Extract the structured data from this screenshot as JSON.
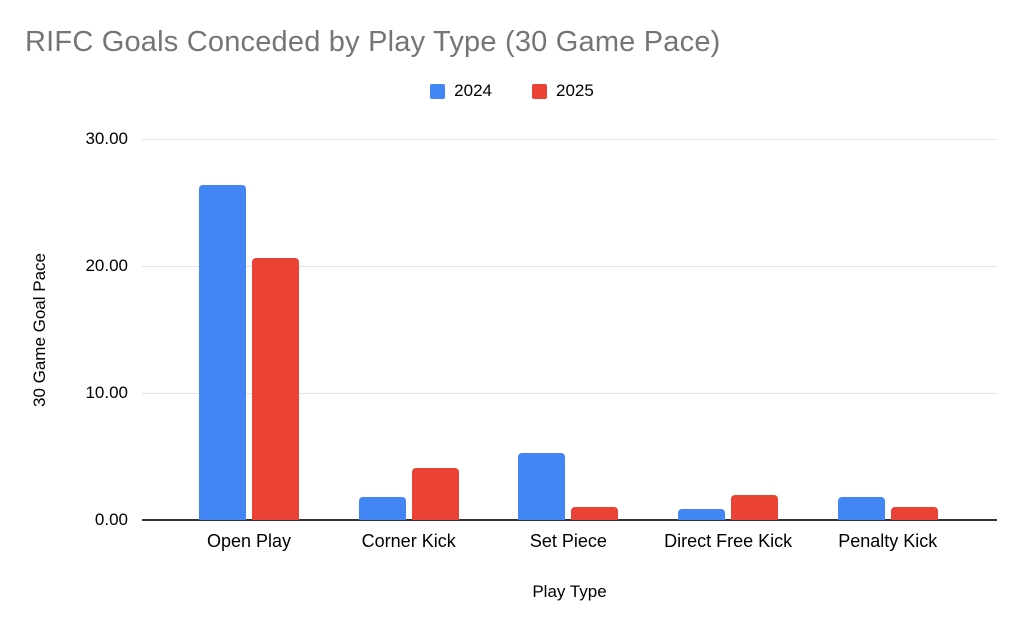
{
  "title": "RIFC Goals Conceded by Play Type (30 Game Pace)",
  "chart_data": {
    "type": "bar",
    "title": "RIFC Goals Conceded by Play Type (30 Game Pace)",
    "categories": [
      "Open Play",
      "Corner Kick",
      "Set Piece",
      "Direct Free Kick",
      "Penalty Kick"
    ],
    "series": [
      {
        "name": "2024",
        "color": "#4285F4",
        "values": [
          26.4,
          1.8,
          5.3,
          0.9,
          1.8
        ]
      },
      {
        "name": "2025",
        "color": "#EA4335",
        "values": [
          20.6,
          4.1,
          1.0,
          2.0,
          1.0
        ]
      }
    ],
    "xlabel": "Play Type",
    "ylabel": "30 Game Goal Pace",
    "ylim": [
      0,
      30
    ],
    "yticks": [
      0,
      10,
      20,
      30
    ],
    "ytick_labels": [
      "0.00",
      "10.00",
      "20.00",
      "30.00"
    ],
    "grid": true,
    "legend_position": "top"
  },
  "colors": {
    "title_text": "#757575",
    "axis_text": "#000000",
    "gridline": "#e3e3e3",
    "axis_line": "#333333",
    "background": "#ffffff",
    "series_2024": "#4285F4",
    "series_2025": "#EA4335"
  }
}
